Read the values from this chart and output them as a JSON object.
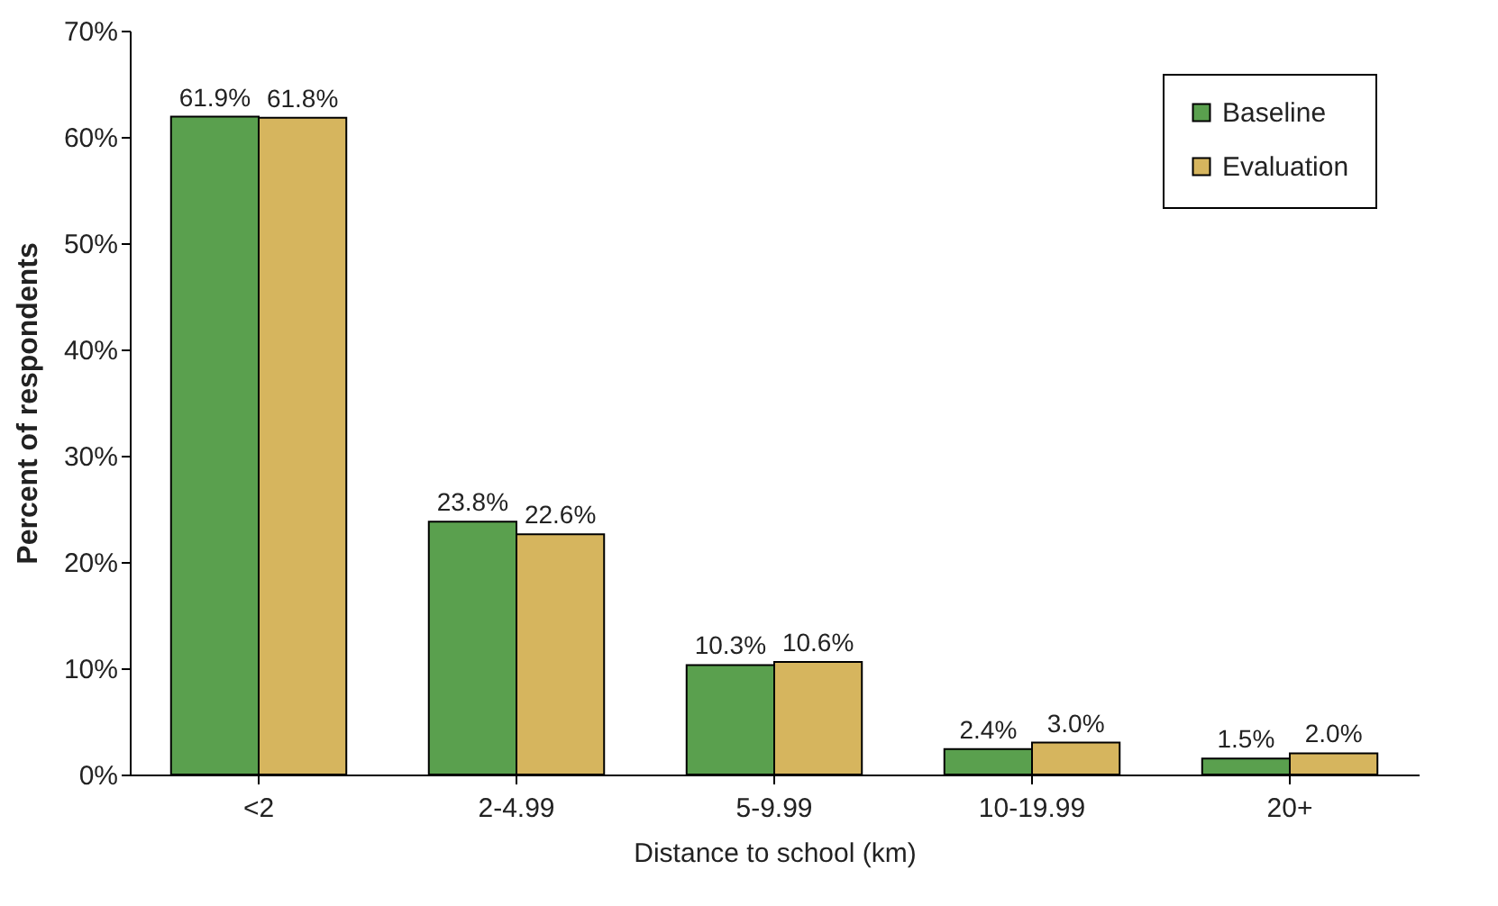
{
  "chart_data": {
    "type": "bar",
    "xlabel": "Distance to school (km)",
    "ylabel": "Percent of respondents",
    "categories": [
      "<2",
      "2-4.99",
      "5-9.99",
      "10-19.99",
      "20+"
    ],
    "series": [
      {
        "name": "Baseline",
        "color": "#5aa04e",
        "values": [
          61.9,
          23.8,
          10.3,
          2.4,
          1.5
        ],
        "value_labels": [
          "61.9%",
          "23.8%",
          "10.3%",
          "2.4%",
          "1.5%"
        ]
      },
      {
        "name": "Evaluation",
        "color": "#d6b55e",
        "values": [
          61.8,
          22.6,
          10.6,
          3.0,
          2.0
        ],
        "value_labels": [
          "61.8%",
          "22.6%",
          "10.6%",
          "3.0%",
          "2.0%"
        ]
      }
    ],
    "ylim": [
      0,
      70
    ],
    "yticks": [
      {
        "value": 0,
        "label": "0%"
      },
      {
        "value": 10,
        "label": "10%"
      },
      {
        "value": 20,
        "label": "20%"
      },
      {
        "value": 30,
        "label": "30%"
      },
      {
        "value": 40,
        "label": "40%"
      },
      {
        "value": 50,
        "label": "50%"
      },
      {
        "value": 60,
        "label": "60%"
      },
      {
        "value": 70,
        "label": "70%"
      }
    ],
    "grid": false,
    "legend": "top right"
  }
}
